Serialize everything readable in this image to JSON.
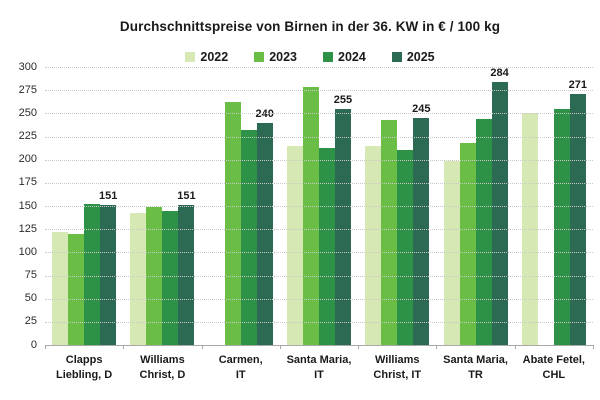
{
  "chart_data": {
    "type": "bar",
    "title": "Durchschnittspreise von Birnen in der 36. KW in € / 100 kg",
    "categories": [
      "Clapps Liebling, D",
      "Williams Christ, D",
      "Carmen, IT",
      "Santa Maria, IT",
      "Williams Christ, IT",
      "Santa Maria, TR",
      "Abate Fetel, CHL"
    ],
    "category_lines": [
      [
        "Clapps",
        "Liebling, D"
      ],
      [
        "Williams",
        "Christ, D"
      ],
      [
        "Carmen,",
        "IT"
      ],
      [
        "Santa Maria,",
        "IT"
      ],
      [
        "Williams",
        "Christ, IT"
      ],
      [
        "Santa Maria,",
        "TR"
      ],
      [
        "Abate Fetel,",
        "CHL"
      ]
    ],
    "series": [
      {
        "name": "2022",
        "color": "#d6e9b4",
        "values": [
          122,
          142,
          null,
          215,
          215,
          199,
          250
        ],
        "show_value_labels": false
      },
      {
        "name": "2023",
        "color": "#6bbe45",
        "values": [
          120,
          149,
          262,
          278,
          243,
          218,
          null
        ],
        "show_value_labels": false
      },
      {
        "name": "2024",
        "color": "#2e9148",
        "values": [
          152,
          145,
          232,
          213,
          210,
          244,
          255
        ],
        "show_value_labels": false
      },
      {
        "name": "2025",
        "color": "#2c6a54",
        "values": [
          151,
          151,
          240,
          255,
          245,
          284,
          271
        ],
        "show_value_labels": true
      }
    ],
    "value_labels_shown": [
      151,
      151,
      240,
      255,
      245,
      284,
      271
    ],
    "ylim": [
      0,
      300
    ],
    "ytick_step": 25,
    "yticks": [
      0,
      25,
      50,
      75,
      100,
      125,
      150,
      175,
      200,
      225,
      250,
      275,
      300
    ],
    "grid": "horizontal-dotted",
    "legend_position": "top-center",
    "xlabel": "",
    "ylabel": ""
  },
  "colors": {
    "background": "#ffffff",
    "gridline": "#c9c9c9",
    "axis": "#a8a8a8",
    "text": "#1a1a1a"
  }
}
